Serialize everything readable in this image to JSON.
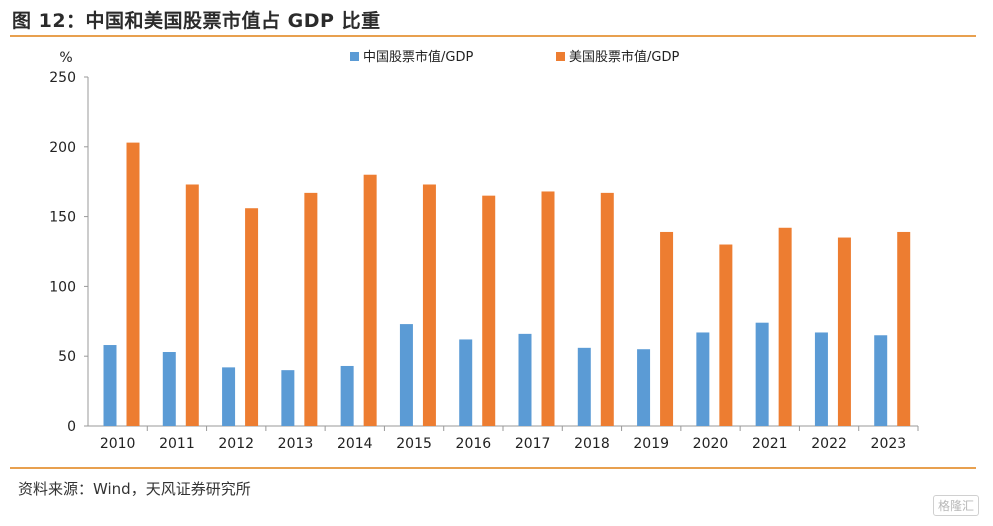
{
  "header": {
    "title": "图 12：中国和美国股票市值占 GDP 比重"
  },
  "footer": {
    "source": "资料来源：Wind，天风证券研究所",
    "watermark": "格隆汇"
  },
  "chart_data": {
    "type": "bar",
    "title": "图 12：中国和美国股票市值占 GDP 比重",
    "ylabel": "%",
    "xlabel": "",
    "ylim": [
      0,
      250
    ],
    "yticks": [
      0,
      50,
      100,
      150,
      200,
      250
    ],
    "legend_position": "top",
    "categories": [
      "2010",
      "2011",
      "2012",
      "2013",
      "2014",
      "2015",
      "2016",
      "2017",
      "2018",
      "2019",
      "2020",
      "2021",
      "2022",
      "2023"
    ],
    "series": [
      {
        "name": "中国股票市值/GDP",
        "color": "#5b9bd5",
        "values": [
          58,
          53,
          42,
          40,
          43,
          73,
          62,
          66,
          56,
          55,
          67,
          74,
          67,
          65
        ]
      },
      {
        "name": "美国股票市值/GDP",
        "color": "#ed7d31",
        "values": [
          203,
          173,
          156,
          167,
          180,
          173,
          165,
          168,
          167,
          139,
          130,
          142,
          135,
          139
        ]
      }
    ]
  }
}
